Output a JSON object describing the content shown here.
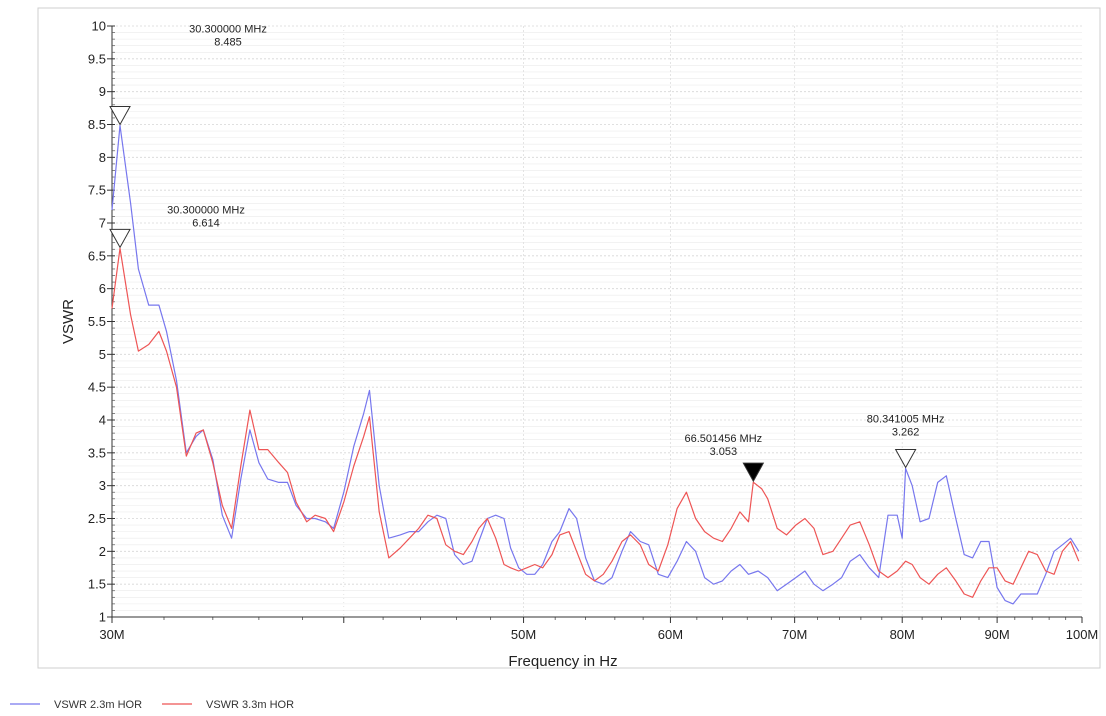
{
  "chart_data": {
    "type": "line",
    "title": "",
    "xlabel": "Frequency in Hz",
    "ylabel": "VSWR",
    "x_scale": "log",
    "xlim": [
      30,
      100
    ],
    "ylim": [
      1,
      10
    ],
    "grid": true,
    "legend_position": "bottom-left",
    "x_ticks": [
      {
        "value": 30,
        "label": "30M"
      },
      {
        "value": 50,
        "label": "50M"
      },
      {
        "value": 60,
        "label": "60M"
      },
      {
        "value": 70,
        "label": "70M"
      },
      {
        "value": 80,
        "label": "80M"
      },
      {
        "value": 90,
        "label": "90M"
      },
      {
        "value": 100,
        "label": "100M"
      }
    ],
    "y_ticks": [
      1,
      1.5,
      2,
      2.5,
      3,
      3.5,
      4,
      4.5,
      5,
      5.5,
      6,
      6.5,
      7,
      7.5,
      8,
      8.5,
      9,
      9.5,
      10
    ],
    "series": [
      {
        "name": "VSWR 2.3m HOR",
        "color": "#7777ee",
        "points": [
          [
            30.0,
            7.2
          ],
          [
            30.3,
            8.485
          ],
          [
            30.7,
            7.3
          ],
          [
            31.0,
            6.3
          ],
          [
            31.4,
            5.75
          ],
          [
            31.8,
            5.75
          ],
          [
            32.1,
            5.35
          ],
          [
            32.5,
            4.6
          ],
          [
            32.9,
            3.5
          ],
          [
            33.3,
            3.75
          ],
          [
            33.6,
            3.85
          ],
          [
            34.0,
            3.4
          ],
          [
            34.4,
            2.55
          ],
          [
            34.8,
            2.2
          ],
          [
            35.2,
            3.1
          ],
          [
            35.6,
            3.85
          ],
          [
            36.0,
            3.35
          ],
          [
            36.4,
            3.1
          ],
          [
            36.9,
            3.05
          ],
          [
            37.3,
            3.05
          ],
          [
            37.7,
            2.7
          ],
          [
            38.2,
            2.5
          ],
          [
            38.6,
            2.5
          ],
          [
            39.1,
            2.45
          ],
          [
            39.5,
            2.35
          ],
          [
            40.0,
            2.9
          ],
          [
            40.5,
            3.6
          ],
          [
            41.0,
            4.1
          ],
          [
            41.3,
            4.45
          ],
          [
            41.8,
            3.0
          ],
          [
            42.3,
            2.2
          ],
          [
            42.9,
            2.25
          ],
          [
            43.4,
            2.3
          ],
          [
            43.9,
            2.3
          ],
          [
            44.4,
            2.45
          ],
          [
            44.9,
            2.55
          ],
          [
            45.4,
            2.5
          ],
          [
            45.9,
            1.95
          ],
          [
            46.4,
            1.8
          ],
          [
            46.9,
            1.85
          ],
          [
            47.3,
            2.15
          ],
          [
            47.8,
            2.5
          ],
          [
            48.3,
            2.55
          ],
          [
            48.8,
            2.5
          ],
          [
            49.2,
            2.05
          ],
          [
            49.7,
            1.75
          ],
          [
            50.2,
            1.65
          ],
          [
            50.7,
            1.65
          ],
          [
            51.2,
            1.8
          ],
          [
            51.8,
            2.15
          ],
          [
            52.3,
            2.3
          ],
          [
            52.9,
            2.65
          ],
          [
            53.4,
            2.5
          ],
          [
            54.0,
            1.9
          ],
          [
            54.6,
            1.55
          ],
          [
            55.2,
            1.5
          ],
          [
            55.8,
            1.6
          ],
          [
            56.5,
            2.0
          ],
          [
            57.1,
            2.3
          ],
          [
            57.8,
            2.15
          ],
          [
            58.4,
            2.1
          ],
          [
            59.1,
            1.65
          ],
          [
            59.8,
            1.6
          ],
          [
            60.5,
            1.85
          ],
          [
            61.2,
            2.15
          ],
          [
            61.9,
            2.0
          ],
          [
            62.6,
            1.6
          ],
          [
            63.3,
            1.5
          ],
          [
            64.0,
            1.55
          ],
          [
            64.7,
            1.7
          ],
          [
            65.4,
            1.8
          ],
          [
            66.1,
            1.65
          ],
          [
            66.9,
            1.7
          ],
          [
            67.7,
            1.6
          ],
          [
            68.5,
            1.4
          ],
          [
            69.3,
            1.5
          ],
          [
            70.1,
            1.6
          ],
          [
            70.9,
            1.7
          ],
          [
            71.7,
            1.5
          ],
          [
            72.5,
            1.4
          ],
          [
            73.4,
            1.5
          ],
          [
            74.2,
            1.6
          ],
          [
            75.0,
            1.85
          ],
          [
            75.9,
            1.95
          ],
          [
            76.8,
            1.75
          ],
          [
            77.7,
            1.6
          ],
          [
            78.6,
            2.55
          ],
          [
            79.5,
            2.55
          ],
          [
            80.0,
            2.2
          ],
          [
            80.341,
            3.262
          ],
          [
            81.0,
            3.0
          ],
          [
            81.8,
            2.45
          ],
          [
            82.7,
            2.5
          ],
          [
            83.6,
            3.05
          ],
          [
            84.5,
            3.15
          ],
          [
            85.5,
            2.5
          ],
          [
            86.4,
            1.95
          ],
          [
            87.3,
            1.9
          ],
          [
            88.2,
            2.15
          ],
          [
            89.1,
            2.15
          ],
          [
            90.0,
            1.45
          ],
          [
            90.9,
            1.25
          ],
          [
            91.8,
            1.2
          ],
          [
            92.7,
            1.35
          ],
          [
            93.6,
            1.35
          ],
          [
            94.6,
            1.35
          ],
          [
            95.6,
            1.65
          ],
          [
            96.6,
            2.0
          ],
          [
            97.6,
            2.1
          ],
          [
            98.6,
            2.2
          ],
          [
            99.6,
            2.0
          ]
        ]
      },
      {
        "name": "VSWR 3.3m HOR",
        "color": "#ee5555",
        "points": [
          [
            30.0,
            5.7
          ],
          [
            30.3,
            6.614
          ],
          [
            30.7,
            5.6
          ],
          [
            31.0,
            5.05
          ],
          [
            31.4,
            5.15
          ],
          [
            31.8,
            5.35
          ],
          [
            32.1,
            5.05
          ],
          [
            32.5,
            4.5
          ],
          [
            32.9,
            3.45
          ],
          [
            33.3,
            3.8
          ],
          [
            33.6,
            3.85
          ],
          [
            34.0,
            3.35
          ],
          [
            34.4,
            2.7
          ],
          [
            34.8,
            2.35
          ],
          [
            35.2,
            3.3
          ],
          [
            35.6,
            4.15
          ],
          [
            36.0,
            3.55
          ],
          [
            36.4,
            3.55
          ],
          [
            36.9,
            3.35
          ],
          [
            37.3,
            3.2
          ],
          [
            37.7,
            2.75
          ],
          [
            38.2,
            2.45
          ],
          [
            38.6,
            2.55
          ],
          [
            39.1,
            2.5
          ],
          [
            39.5,
            2.3
          ],
          [
            40.0,
            2.75
          ],
          [
            40.5,
            3.3
          ],
          [
            41.0,
            3.75
          ],
          [
            41.3,
            4.05
          ],
          [
            41.8,
            2.6
          ],
          [
            42.3,
            1.9
          ],
          [
            42.9,
            2.05
          ],
          [
            43.4,
            2.2
          ],
          [
            43.9,
            2.35
          ],
          [
            44.4,
            2.55
          ],
          [
            44.9,
            2.5
          ],
          [
            45.4,
            2.1
          ],
          [
            45.9,
            2.0
          ],
          [
            46.4,
            1.95
          ],
          [
            46.9,
            2.15
          ],
          [
            47.3,
            2.35
          ],
          [
            47.8,
            2.5
          ],
          [
            48.3,
            2.2
          ],
          [
            48.8,
            1.8
          ],
          [
            49.2,
            1.75
          ],
          [
            49.7,
            1.7
          ],
          [
            50.2,
            1.75
          ],
          [
            50.7,
            1.8
          ],
          [
            51.2,
            1.75
          ],
          [
            51.8,
            1.95
          ],
          [
            52.3,
            2.25
          ],
          [
            52.9,
            2.3
          ],
          [
            53.4,
            2.0
          ],
          [
            54.0,
            1.65
          ],
          [
            54.6,
            1.55
          ],
          [
            55.2,
            1.65
          ],
          [
            55.8,
            1.85
          ],
          [
            56.5,
            2.15
          ],
          [
            57.1,
            2.25
          ],
          [
            57.8,
            2.1
          ],
          [
            58.4,
            1.8
          ],
          [
            59.1,
            1.7
          ],
          [
            59.8,
            2.1
          ],
          [
            60.5,
            2.65
          ],
          [
            61.2,
            2.9
          ],
          [
            61.9,
            2.5
          ],
          [
            62.6,
            2.3
          ],
          [
            63.3,
            2.2
          ],
          [
            64.0,
            2.15
          ],
          [
            64.7,
            2.35
          ],
          [
            65.4,
            2.6
          ],
          [
            66.1,
            2.45
          ],
          [
            66.501,
            3.053
          ],
          [
            67.2,
            2.95
          ],
          [
            67.7,
            2.8
          ],
          [
            68.5,
            2.35
          ],
          [
            69.3,
            2.25
          ],
          [
            70.1,
            2.4
          ],
          [
            70.9,
            2.5
          ],
          [
            71.7,
            2.35
          ],
          [
            72.5,
            1.95
          ],
          [
            73.4,
            2.0
          ],
          [
            74.2,
            2.2
          ],
          [
            75.0,
            2.4
          ],
          [
            75.9,
            2.45
          ],
          [
            76.8,
            2.1
          ],
          [
            77.7,
            1.7
          ],
          [
            78.6,
            1.6
          ],
          [
            79.5,
            1.7
          ],
          [
            80.341,
            1.85
          ],
          [
            81.0,
            1.8
          ],
          [
            81.8,
            1.6
          ],
          [
            82.7,
            1.5
          ],
          [
            83.6,
            1.65
          ],
          [
            84.5,
            1.75
          ],
          [
            85.5,
            1.55
          ],
          [
            86.4,
            1.35
          ],
          [
            87.3,
            1.3
          ],
          [
            88.2,
            1.55
          ],
          [
            89.1,
            1.75
          ],
          [
            90.0,
            1.75
          ],
          [
            90.9,
            1.55
          ],
          [
            91.8,
            1.5
          ],
          [
            92.7,
            1.75
          ],
          [
            93.6,
            2.0
          ],
          [
            94.6,
            1.95
          ],
          [
            95.6,
            1.7
          ],
          [
            96.6,
            1.65
          ],
          [
            97.6,
            2.0
          ],
          [
            98.6,
            2.15
          ],
          [
            99.6,
            1.85
          ]
        ]
      }
    ],
    "markers": [
      {
        "series": 0,
        "x": 30.3,
        "y": 8.485,
        "freq_label": "30.300000 MHz",
        "value_label": "8.485",
        "filled": false
      },
      {
        "series": 1,
        "x": 30.3,
        "y": 6.614,
        "freq_label": "30.300000 MHz",
        "value_label": "6.614",
        "filled": false
      },
      {
        "series": 1,
        "x": 66.501456,
        "y": 3.053,
        "freq_label": "66.501456 MHz",
        "value_label": "3.053",
        "filled": true
      },
      {
        "series": 0,
        "x": 80.341005,
        "y": 3.262,
        "freq_label": "80.341005 MHz",
        "value_label": "3.262",
        "filled": false
      }
    ]
  }
}
